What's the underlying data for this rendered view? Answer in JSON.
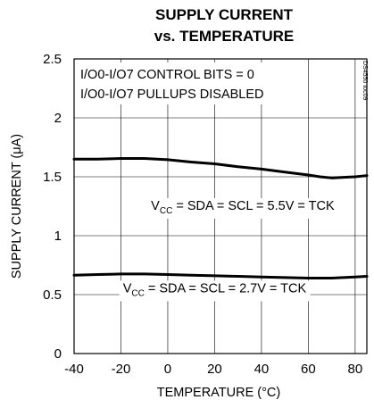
{
  "chart_data": {
    "type": "line",
    "title": "SUPPLY CURRENT",
    "subtitle": "vs. TEMPERATURE",
    "xlabel": "TEMPERATURE (°C)",
    "ylabel": "SUPPLY CURRENT (μA)",
    "xlim": [
      -40,
      85
    ],
    "ylim": [
      0,
      2.5
    ],
    "xticks": [
      "-40",
      "-20",
      "0",
      "20",
      "40",
      "60",
      "80"
    ],
    "yticks": [
      "0",
      "0.5",
      "1",
      "1.5",
      "2",
      "2.5"
    ],
    "grid": true,
    "annotations": [
      "I/O0-I/O7 CONTROL BITS = 0",
      "I/O0-I/O7 PULLUPS DISABLED"
    ],
    "corner_code": "DS4550 toc09",
    "series": [
      {
        "name": "VCC = SDA = SCL = 5.5V = TCK",
        "x": [
          -40,
          -30,
          -20,
          -10,
          0,
          10,
          20,
          30,
          40,
          50,
          60,
          65,
          70,
          75,
          80,
          85
        ],
        "y": [
          1.65,
          1.65,
          1.655,
          1.655,
          1.645,
          1.625,
          1.61,
          1.585,
          1.565,
          1.54,
          1.515,
          1.5,
          1.49,
          1.495,
          1.5,
          1.51
        ]
      },
      {
        "name": "VCC = SDA = SCL = 2.7V = TCK",
        "x": [
          -40,
          -30,
          -20,
          -10,
          0,
          10,
          20,
          30,
          40,
          50,
          60,
          65,
          70,
          75,
          80,
          85
        ],
        "y": [
          0.665,
          0.67,
          0.675,
          0.675,
          0.67,
          0.665,
          0.66,
          0.655,
          0.65,
          0.645,
          0.64,
          0.64,
          0.64,
          0.645,
          0.65,
          0.655
        ]
      }
    ],
    "series_labels": [
      {
        "main": "V",
        "sub": "CC",
        "rest": " = SDA = SCL = 5.5V = TCK"
      },
      {
        "main": "V",
        "sub": "CC",
        "rest": " = SDA = SCL = 2.7V = TCK"
      }
    ],
    "series_label_anchor": [
      {
        "x": 32,
        "y": 1.22
      },
      {
        "x": 20,
        "y": 0.52
      }
    ]
  }
}
